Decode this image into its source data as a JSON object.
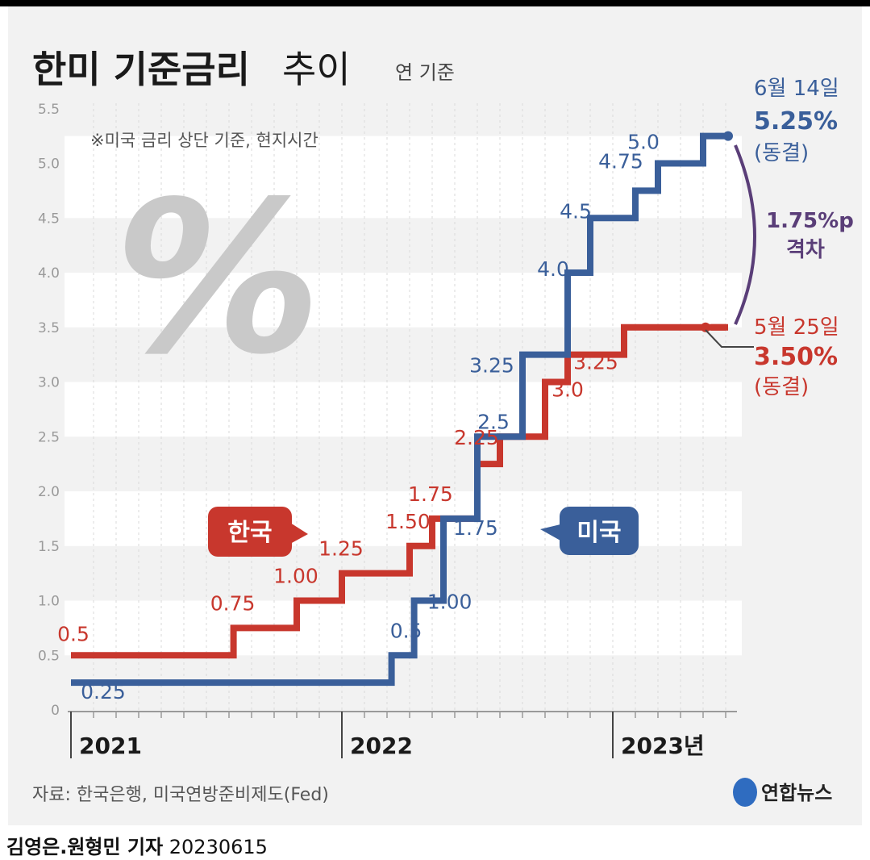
{
  "colors": {
    "korea": "#c8372d",
    "us": "#3a5f9a",
    "gap": "#5a3e78",
    "text_dark": "#1a1a1a",
    "axis_text": "#9a9a9a"
  },
  "header": {
    "title_bold": "한미 기준금리",
    "title_light": "추이",
    "unit": "연 기준",
    "note": "※미국 금리 상단 기준, 현지시간"
  },
  "chart_data": {
    "type": "line",
    "step": true,
    "ylim": [
      0,
      5.5
    ],
    "yticks": [
      0,
      0.5,
      1.0,
      1.5,
      2.0,
      2.5,
      3.0,
      3.5,
      4.0,
      4.5,
      5.0,
      5.5
    ],
    "ytick_labels": [
      "0",
      "0.5",
      "1.0",
      "1.5",
      "2.0",
      "2.5",
      "3.0",
      "3.5",
      "4.0",
      "4.5",
      "5.0",
      "5.5"
    ],
    "x_unit": "month index from 2021-01",
    "xlim": [
      0,
      29.5
    ],
    "year_ticks": [
      {
        "x": 0,
        "label": "2021"
      },
      {
        "x": 12,
        "label": "2022"
      },
      {
        "x": 24,
        "label": "2023년"
      }
    ],
    "series": [
      {
        "name": "한국",
        "steps": [
          [
            0,
            0.5
          ],
          [
            7.2,
            0.75
          ],
          [
            10.0,
            1.0
          ],
          [
            12.0,
            1.25
          ],
          [
            15.0,
            1.5
          ],
          [
            16.0,
            1.75
          ],
          [
            18.0,
            2.25
          ],
          [
            19.0,
            2.5
          ],
          [
            21.0,
            3.0
          ],
          [
            22.0,
            3.25
          ],
          [
            24.5,
            3.5
          ]
        ],
        "end_x": 29.0,
        "labels": [
          "0.5",
          "0.75",
          "1.00",
          "1.25",
          "1.50",
          "1.75",
          "2.25",
          "",
          "3.0",
          "3.25",
          ""
        ]
      },
      {
        "name": "미국",
        "steps": [
          [
            0,
            0.25
          ],
          [
            14.2,
            0.5
          ],
          [
            15.2,
            1.0
          ],
          [
            16.5,
            1.75
          ],
          [
            18.0,
            2.5
          ],
          [
            20.0,
            3.25
          ],
          [
            22.0,
            4.0
          ],
          [
            23.0,
            4.5
          ],
          [
            25.0,
            4.75
          ],
          [
            26.0,
            5.0
          ],
          [
            28.0,
            5.25
          ]
        ],
        "end_x": 29.0,
        "labels": [
          "0.25",
          "0.5",
          "1.00",
          "1.75",
          "2.5",
          "3.25",
          "4.0",
          "4.5",
          "4.75",
          "5.0",
          ""
        ]
      }
    ],
    "callouts": {
      "us": {
        "date": "6월 14일",
        "value": "5.25%",
        "status": "(동결)"
      },
      "korea": {
        "date": "5월 25일",
        "value": "3.50%",
        "status": "(동결)"
      },
      "gap": {
        "value": "1.75%p",
        "label": "격차"
      }
    },
    "legend": {
      "korea": "한국",
      "us": "미국"
    }
  },
  "footer": {
    "source": "자료: 한국은행, 미국연방준비제도(Fed)",
    "logo_text": "연합뉴스",
    "authors": "김영은.원형민 기자",
    "date": "20230615"
  }
}
